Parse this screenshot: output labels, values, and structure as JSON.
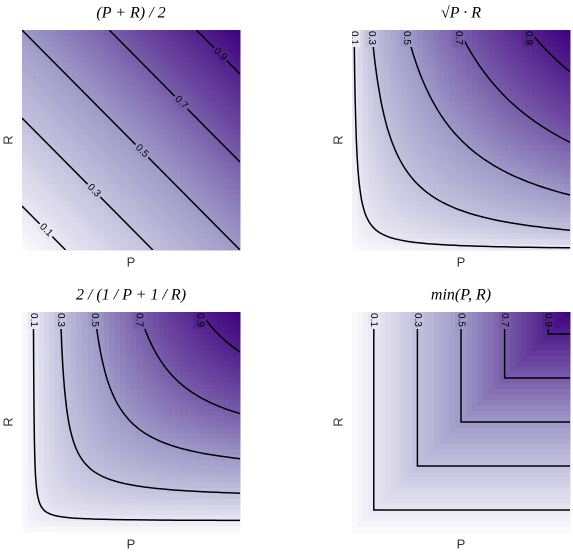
{
  "chart_data": [
    {
      "type": "contour",
      "function": "arithmetic_mean",
      "title": "(P + R) / 2",
      "x_label": "P",
      "y_label": "R",
      "xlim": [
        0,
        1
      ],
      "ylim": [
        0,
        1
      ],
      "levels": [
        0.1,
        0.3,
        0.5,
        0.7,
        0.9
      ],
      "colors": [
        "#fcfbfd",
        "#9e9ac8",
        "#3f007d"
      ]
    },
    {
      "type": "contour",
      "function": "geometric_mean",
      "title": "√P · R",
      "x_label": "P",
      "y_label": "R",
      "xlim": [
        0,
        1
      ],
      "ylim": [
        0,
        1
      ],
      "levels": [
        0.1,
        0.3,
        0.5,
        0.7,
        0.9
      ],
      "colors": [
        "#fcfbfd",
        "#9e9ac8",
        "#3f007d"
      ]
    },
    {
      "type": "contour",
      "function": "harmonic_mean",
      "title": "2 / (1 / P + 1 / R)",
      "x_label": "P",
      "y_label": "R",
      "xlim": [
        0,
        1
      ],
      "ylim": [
        0,
        1
      ],
      "levels": [
        0.1,
        0.3,
        0.5,
        0.7,
        0.9
      ],
      "colors": [
        "#fcfbfd",
        "#9e9ac8",
        "#3f007d"
      ]
    },
    {
      "type": "contour",
      "function": "min",
      "title": "min(P, R)",
      "x_label": "P",
      "y_label": "R",
      "xlim": [
        0,
        1
      ],
      "ylim": [
        0,
        1
      ],
      "levels": [
        0.1,
        0.3,
        0.5,
        0.7,
        0.9
      ],
      "colors": [
        "#fcfbfd",
        "#9e9ac8",
        "#3f007d"
      ]
    }
  ]
}
